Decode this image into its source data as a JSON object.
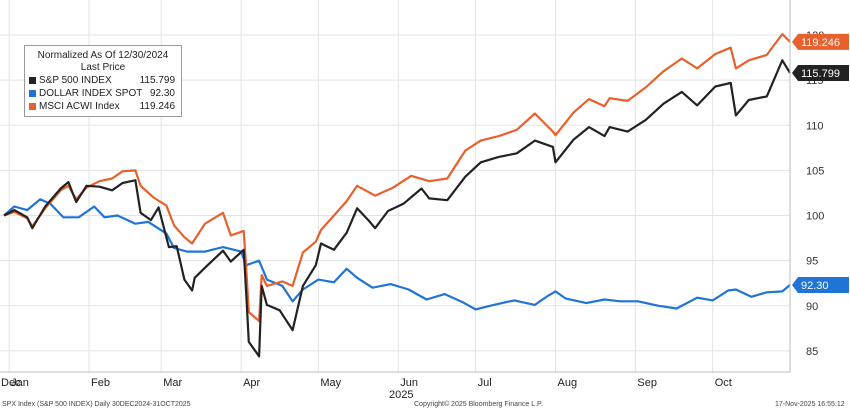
{
  "legend": {
    "title": "Normalized As Of 12/30/2024",
    "subtitle": "Last Price"
  },
  "footer": {
    "left": "SPX Index (S&P 500 INDEX) Daily 30DEC2024-31OCT2025",
    "center": "Copyright© 2025 Bloomberg Finance L.P.",
    "right": "17-Nov-2025 16:55:12"
  },
  "chart_data": {
    "type": "line",
    "title": "",
    "xlabel": "2025",
    "ylabel": "",
    "x_tick_labels": [
      "Dec",
      "Jan",
      "Feb",
      "Mar",
      "Apr",
      "May",
      "Jun",
      "Jul",
      "Aug",
      "Sep",
      "Oct"
    ],
    "y_tick_labels": [
      85,
      90,
      95,
      100,
      105,
      110,
      115,
      120
    ],
    "ylim": [
      82,
      121
    ],
    "x_range": [
      "2024-12-30",
      "2025-10-31"
    ],
    "grid": true,
    "legend_position": "top-left",
    "series": [
      {
        "name": "S&P 500 INDEX",
        "color": "#222222",
        "last": "115.799",
        "points": [
          [
            "2024-12-30",
            100.0
          ],
          [
            "2025-01-03",
            100.6
          ],
          [
            "2025-01-08",
            99.8
          ],
          [
            "2025-01-10",
            98.6
          ],
          [
            "2025-01-15",
            101.0
          ],
          [
            "2025-01-21",
            103.0
          ],
          [
            "2025-01-24",
            103.7
          ],
          [
            "2025-01-27",
            101.5
          ],
          [
            "2025-01-31",
            103.3
          ],
          [
            "2025-02-05",
            103.2
          ],
          [
            "2025-02-10",
            102.8
          ],
          [
            "2025-02-14",
            103.6
          ],
          [
            "2025-02-19",
            103.9
          ],
          [
            "2025-02-21",
            100.3
          ],
          [
            "2025-02-25",
            99.5
          ],
          [
            "2025-02-28",
            100.9
          ],
          [
            "2025-03-04",
            96.5
          ],
          [
            "2025-03-07",
            96.6
          ],
          [
            "2025-03-10",
            92.9
          ],
          [
            "2025-03-13",
            91.7
          ],
          [
            "2025-03-14",
            93.1
          ],
          [
            "2025-03-19",
            94.5
          ],
          [
            "2025-03-25",
            96.1
          ],
          [
            "2025-03-28",
            94.9
          ],
          [
            "2025-04-02",
            96.2
          ],
          [
            "2025-04-03",
            91.4
          ],
          [
            "2025-04-04",
            86.0
          ],
          [
            "2025-04-08",
            84.4
          ],
          [
            "2025-04-09",
            92.2
          ],
          [
            "2025-04-11",
            90.1
          ],
          [
            "2025-04-16",
            89.5
          ],
          [
            "2025-04-21",
            87.3
          ],
          [
            "2025-04-25",
            92.2
          ],
          [
            "2025-04-30",
            94.5
          ],
          [
            "2025-05-02",
            96.9
          ],
          [
            "2025-05-07",
            96.2
          ],
          [
            "2025-05-12",
            98.1
          ],
          [
            "2025-05-16",
            100.8
          ],
          [
            "2025-05-21",
            99.3
          ],
          [
            "2025-05-23",
            98.6
          ],
          [
            "2025-05-28",
            100.5
          ],
          [
            "2025-06-03",
            101.3
          ],
          [
            "2025-06-10",
            103.0
          ],
          [
            "2025-06-13",
            101.9
          ],
          [
            "2025-06-20",
            101.7
          ],
          [
            "2025-06-27",
            104.3
          ],
          [
            "2025-07-03",
            105.9
          ],
          [
            "2025-07-10",
            106.5
          ],
          [
            "2025-07-17",
            106.9
          ],
          [
            "2025-07-24",
            108.3
          ],
          [
            "2025-07-31",
            107.6
          ],
          [
            "2025-08-01",
            105.9
          ],
          [
            "2025-08-08",
            108.4
          ],
          [
            "2025-08-14",
            109.8
          ],
          [
            "2025-08-20",
            108.8
          ],
          [
            "2025-08-22",
            109.8
          ],
          [
            "2025-08-29",
            109.3
          ],
          [
            "2025-09-05",
            110.6
          ],
          [
            "2025-09-12",
            112.4
          ],
          [
            "2025-09-19",
            113.7
          ],
          [
            "2025-09-25",
            112.2
          ],
          [
            "2025-10-02",
            114.3
          ],
          [
            "2025-10-08",
            114.7
          ],
          [
            "2025-10-10",
            111.1
          ],
          [
            "2025-10-15",
            112.8
          ],
          [
            "2025-10-22",
            113.2
          ],
          [
            "2025-10-28",
            117.2
          ],
          [
            "2025-10-31",
            115.799
          ]
        ]
      },
      {
        "name": "DOLLAR INDEX SPOT",
        "color": "#1f74d6",
        "last": "92.30",
        "points": [
          [
            "2024-12-30",
            100.0
          ],
          [
            "2025-01-03",
            101.0
          ],
          [
            "2025-01-08",
            100.6
          ],
          [
            "2025-01-13",
            101.8
          ],
          [
            "2025-01-17",
            101.3
          ],
          [
            "2025-01-22",
            99.8
          ],
          [
            "2025-01-28",
            99.8
          ],
          [
            "2025-02-03",
            101.0
          ],
          [
            "2025-02-07",
            99.8
          ],
          [
            "2025-02-12",
            100.0
          ],
          [
            "2025-02-19",
            99.1
          ],
          [
            "2025-02-24",
            99.3
          ],
          [
            "2025-03-03",
            98.0
          ],
          [
            "2025-03-06",
            96.4
          ],
          [
            "2025-03-11",
            96.0
          ],
          [
            "2025-03-18",
            96.0
          ],
          [
            "2025-03-25",
            96.5
          ],
          [
            "2025-04-01",
            96.0
          ],
          [
            "2025-04-03",
            94.5
          ],
          [
            "2025-04-08",
            95.0
          ],
          [
            "2025-04-11",
            92.9
          ],
          [
            "2025-04-17",
            92.2
          ],
          [
            "2025-04-21",
            90.5
          ],
          [
            "2025-04-25",
            91.8
          ],
          [
            "2025-05-01",
            92.9
          ],
          [
            "2025-05-07",
            92.6
          ],
          [
            "2025-05-12",
            94.1
          ],
          [
            "2025-05-16",
            93.1
          ],
          [
            "2025-05-22",
            92.0
          ],
          [
            "2025-05-29",
            92.4
          ],
          [
            "2025-06-05",
            91.8
          ],
          [
            "2025-06-12",
            90.7
          ],
          [
            "2025-06-19",
            91.3
          ],
          [
            "2025-06-26",
            90.4
          ],
          [
            "2025-07-01",
            89.6
          ],
          [
            "2025-07-08",
            90.1
          ],
          [
            "2025-07-16",
            90.6
          ],
          [
            "2025-07-24",
            90.1
          ],
          [
            "2025-07-29",
            91.1
          ],
          [
            "2025-08-01",
            91.6
          ],
          [
            "2025-08-05",
            90.8
          ],
          [
            "2025-08-13",
            90.3
          ],
          [
            "2025-08-20",
            90.7
          ],
          [
            "2025-08-26",
            90.5
          ],
          [
            "2025-09-02",
            90.5
          ],
          [
            "2025-09-10",
            90.0
          ],
          [
            "2025-09-17",
            89.7
          ],
          [
            "2025-09-25",
            90.9
          ],
          [
            "2025-10-01",
            90.6
          ],
          [
            "2025-10-07",
            91.7
          ],
          [
            "2025-10-10",
            91.8
          ],
          [
            "2025-10-16",
            91.0
          ],
          [
            "2025-10-22",
            91.5
          ],
          [
            "2025-10-28",
            91.6
          ],
          [
            "2025-10-31",
            92.3
          ]
        ]
      },
      {
        "name": "MSCI ACWI Index",
        "color": "#e8602c",
        "last": "119.246",
        "points": [
          [
            "2024-12-30",
            100.0
          ],
          [
            "2025-01-03",
            100.4
          ],
          [
            "2025-01-08",
            99.7
          ],
          [
            "2025-01-10",
            98.8
          ],
          [
            "2025-01-15",
            100.8
          ],
          [
            "2025-01-21",
            102.8
          ],
          [
            "2025-01-24",
            103.3
          ],
          [
            "2025-01-27",
            101.8
          ],
          [
            "2025-01-31",
            103.1
          ],
          [
            "2025-02-05",
            103.8
          ],
          [
            "2025-02-10",
            104.1
          ],
          [
            "2025-02-14",
            104.9
          ],
          [
            "2025-02-19",
            105.0
          ],
          [
            "2025-02-21",
            103.3
          ],
          [
            "2025-02-26",
            102.0
          ],
          [
            "2025-03-03",
            101.1
          ],
          [
            "2025-03-06",
            98.9
          ],
          [
            "2025-03-10",
            97.6
          ],
          [
            "2025-03-13",
            96.9
          ],
          [
            "2025-03-18",
            99.1
          ],
          [
            "2025-03-25",
            100.3
          ],
          [
            "2025-03-28",
            97.8
          ],
          [
            "2025-04-02",
            98.3
          ],
          [
            "2025-04-03",
            94.2
          ],
          [
            "2025-04-04",
            89.3
          ],
          [
            "2025-04-08",
            88.3
          ],
          [
            "2025-04-09",
            93.4
          ],
          [
            "2025-04-11",
            92.2
          ],
          [
            "2025-04-17",
            92.7
          ],
          [
            "2025-04-21",
            92.2
          ],
          [
            "2025-04-25",
            95.9
          ],
          [
            "2025-04-30",
            97.1
          ],
          [
            "2025-05-02",
            98.4
          ],
          [
            "2025-05-12",
            101.6
          ],
          [
            "2025-05-16",
            103.3
          ],
          [
            "2025-05-23",
            102.2
          ],
          [
            "2025-05-30",
            103.1
          ],
          [
            "2025-06-06",
            104.4
          ],
          [
            "2025-06-13",
            103.8
          ],
          [
            "2025-06-20",
            104.1
          ],
          [
            "2025-06-27",
            107.2
          ],
          [
            "2025-07-03",
            108.3
          ],
          [
            "2025-07-10",
            108.8
          ],
          [
            "2025-07-17",
            109.5
          ],
          [
            "2025-07-24",
            111.3
          ],
          [
            "2025-07-31",
            109.3
          ],
          [
            "2025-08-01",
            108.9
          ],
          [
            "2025-08-08",
            111.4
          ],
          [
            "2025-08-14",
            112.9
          ],
          [
            "2025-08-20",
            112.1
          ],
          [
            "2025-08-22",
            113.0
          ],
          [
            "2025-08-29",
            112.7
          ],
          [
            "2025-09-05",
            114.2
          ],
          [
            "2025-09-12",
            116.0
          ],
          [
            "2025-09-19",
            117.4
          ],
          [
            "2025-09-25",
            116.3
          ],
          [
            "2025-10-02",
            117.9
          ],
          [
            "2025-10-08",
            118.6
          ],
          [
            "2025-10-10",
            116.3
          ],
          [
            "2025-10-15",
            117.2
          ],
          [
            "2025-10-22",
            117.8
          ],
          [
            "2025-10-28",
            120.1
          ],
          [
            "2025-10-31",
            119.246
          ]
        ]
      }
    ]
  }
}
